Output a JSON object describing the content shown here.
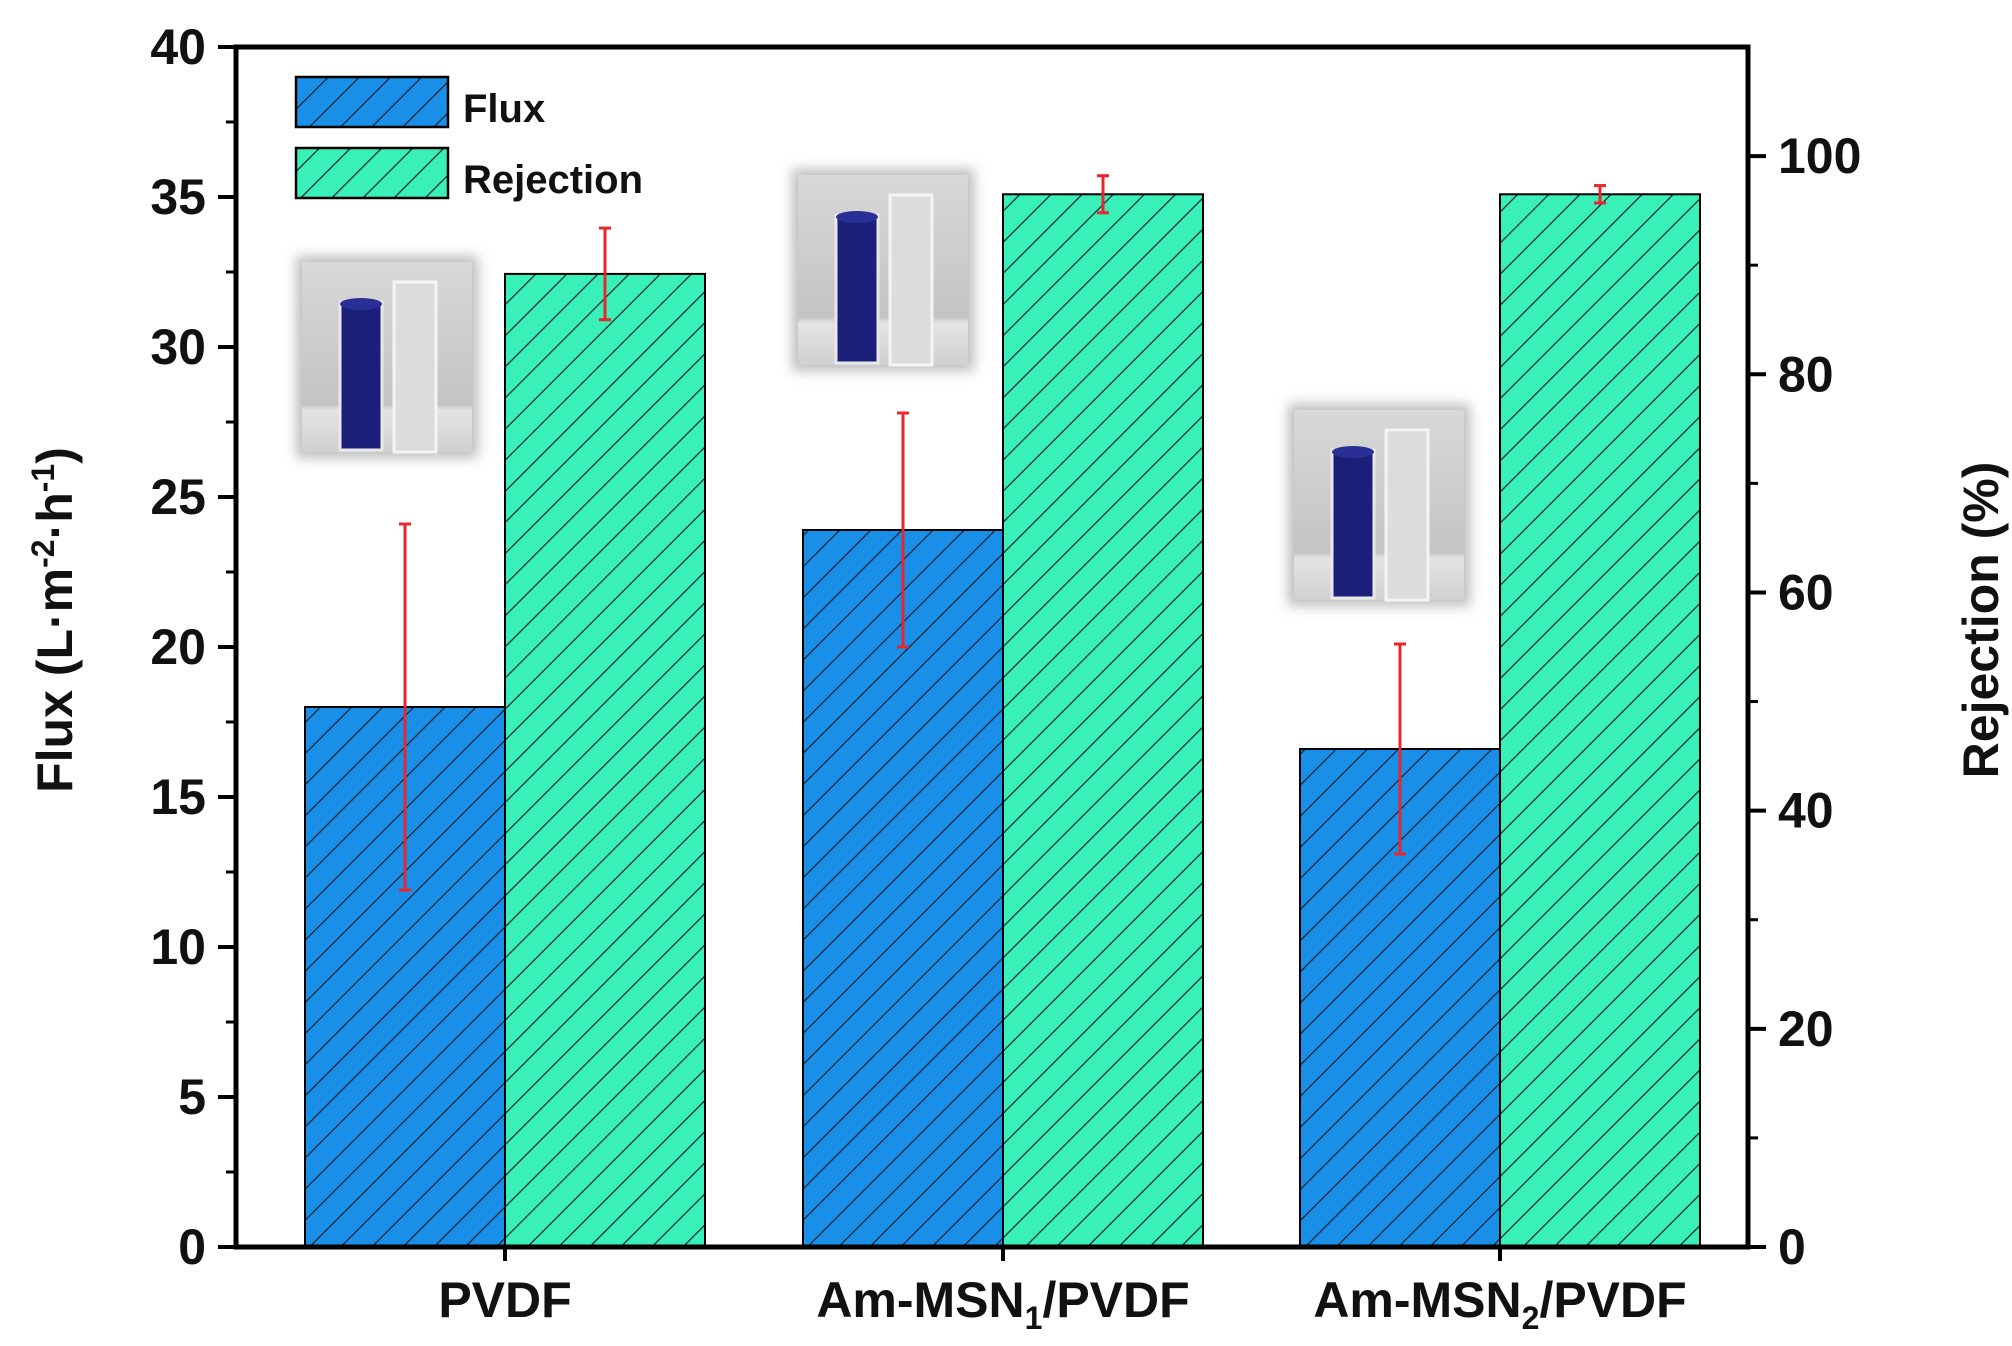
{
  "chart_data": {
    "type": "bar",
    "categories": [
      "PVDF",
      "Am-MSN1/PVDF",
      "Am-MSN2/PVDF"
    ],
    "category_labels": [
      {
        "main": "PVDF",
        "sub": "",
        "tail": ""
      },
      {
        "main": "Am-MSN",
        "sub": "1",
        "tail": "/PVDF"
      },
      {
        "main": "Am-MSN",
        "sub": "2",
        "tail": "/PVDF"
      }
    ],
    "series": [
      {
        "name": "Flux",
        "axis": "left",
        "values": [
          18.0,
          23.9,
          16.6
        ],
        "error": [
          6.1,
          3.9,
          3.5
        ],
        "color": "#1a8fe8"
      },
      {
        "name": "Rejection",
        "axis": "right",
        "values": [
          89.2,
          96.5,
          96.5
        ],
        "error": [
          4.2,
          1.7,
          0.8
        ],
        "color": "#38f0b8"
      }
    ],
    "left_axis": {
      "label": "Flux (L·m⁻²·h⁻¹)",
      "label_parts": [
        "Flux (L·m",
        "-2",
        "·h",
        "-1",
        ")"
      ],
      "ylim": [
        0,
        40
      ],
      "ticks": [
        0,
        5,
        10,
        15,
        20,
        25,
        30,
        35,
        40
      ]
    },
    "right_axis": {
      "label": "Rejection (%)",
      "ylim": [
        0,
        110
      ],
      "ticks": [
        0,
        20,
        40,
        60,
        80,
        100
      ]
    },
    "legend": {
      "placement": "top-left",
      "entries": [
        "Flux",
        "Rejection"
      ]
    },
    "error_bar_color": "#e8262b",
    "hatch": "diagonal",
    "grid": false,
    "insets": [
      "cuvette-photo",
      "cuvette-photo",
      "cuvette-photo"
    ]
  }
}
